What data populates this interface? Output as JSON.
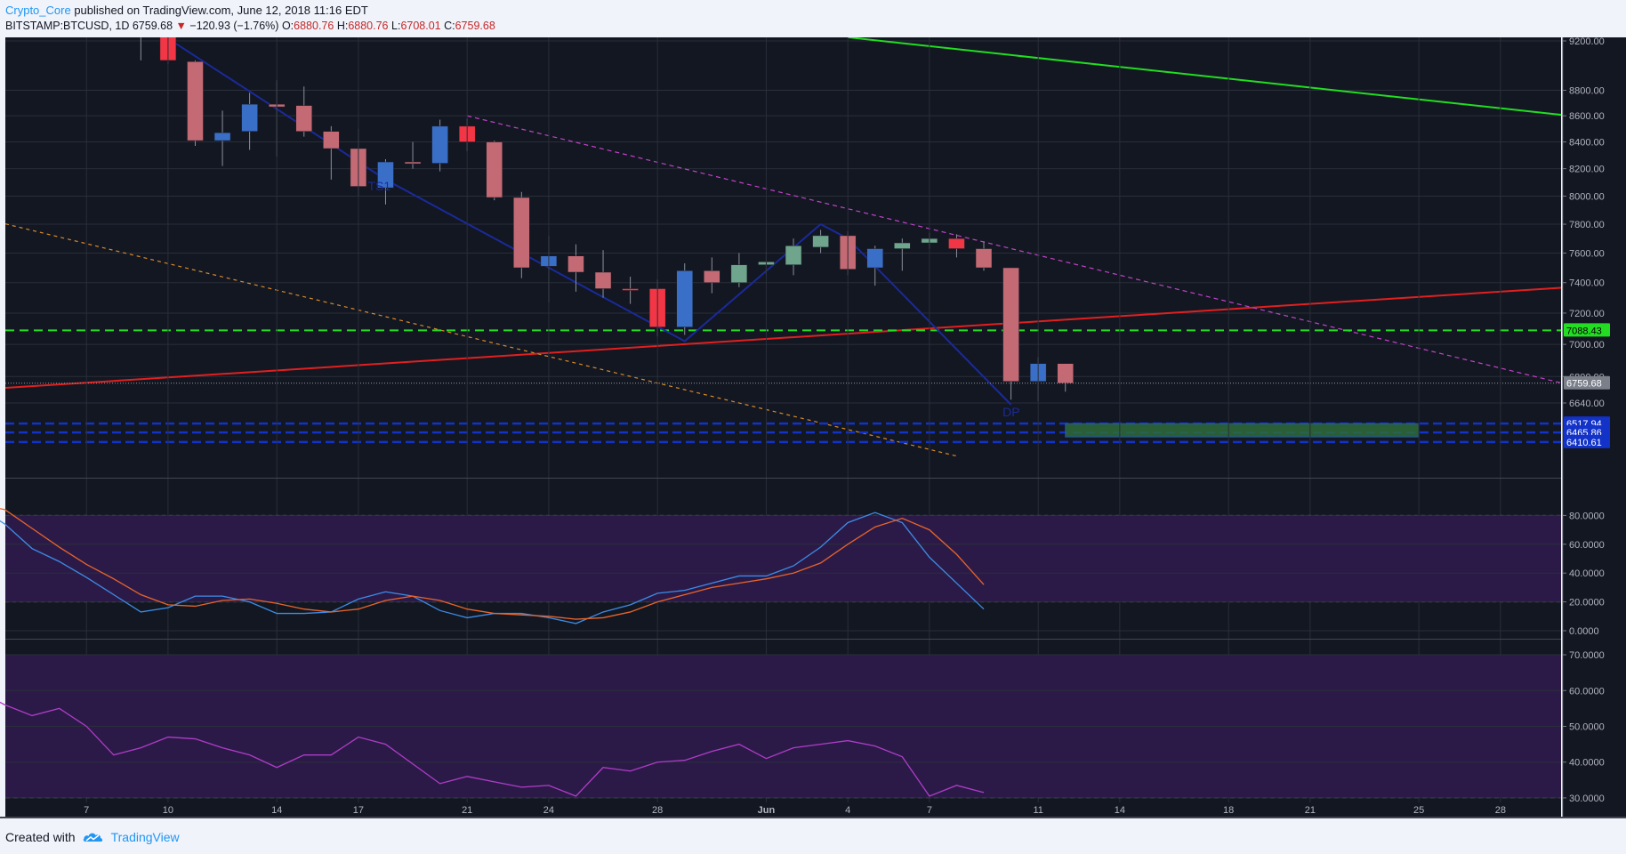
{
  "header": {
    "author": "Crypto_Core",
    "published": " published on TradingView.com, June 12, 2018 11:16 EDT"
  },
  "quote": {
    "symbol": "BITSTAMP:BTCUSD, 1D",
    "last": "6759.68",
    "arrow": "▼",
    "change": "−120.93 (−1.76%)",
    "o_label": "O:",
    "o": "6880.76",
    "h_label": "H:",
    "h": "6880.76",
    "l_label": "L:",
    "l": "6708.01",
    "c_label": "C:",
    "c": "6759.68"
  },
  "footer": {
    "created_with": "Created with",
    "brand": "TradingView"
  },
  "colors": {
    "background": "#131722",
    "up_candle": "#3a6fc8",
    "down_candle": "#f23645",
    "faded_up": "#6fa58c",
    "faded_down": "#c46a74",
    "green_line": "#22dd22",
    "red_line": "#e02020",
    "orange_dash": "#d88a2a",
    "magenta_dash": "#c243c8",
    "navy_line": "#1a2a9a",
    "blue_zone": "#1232c8",
    "stoch_k": "#3c8ce6",
    "stoch_d": "#e8642a",
    "rsi": "#b03cc8",
    "band_fill": "#2b1a48"
  },
  "chart_data": [
    {
      "type": "candlestick",
      "panel": "price",
      "x_tick_labels": [
        "7",
        "10",
        "14",
        "17",
        "21",
        "24",
        "28",
        "Jun",
        "4",
        "7",
        "11",
        "14",
        "18",
        "21",
        "25",
        "28"
      ],
      "y_tick_labels": [
        "9200.00",
        "8800.00",
        "8600.00",
        "8400.00",
        "8200.00",
        "8000.00",
        "7800.00",
        "7600.00",
        "7400.00",
        "7200.00",
        "7000.00",
        "6800.00",
        "6640.00"
      ],
      "price_tags": [
        {
          "label": "7088.43",
          "value": 7088.43,
          "color": "#22dd22",
          "text_color": "#000000"
        },
        {
          "label": "6759.68",
          "value": 6759.68,
          "color": "#7a7f8a",
          "text_color": "#ffffff"
        },
        {
          "label": "6517.94",
          "value": 6517.94,
          "color": "#1232c8",
          "text_color": "#ffffff"
        },
        {
          "label": "6465.86",
          "value": 6465.86,
          "color": "#1232c8",
          "text_color": "#ffffff"
        },
        {
          "label": "6410.61",
          "value": 6410.61,
          "color": "#1232c8",
          "text_color": "#ffffff"
        }
      ],
      "annotations": [
        {
          "text": "TS1",
          "date": "May 18",
          "price": 8040
        },
        {
          "text": "DP",
          "date": "Jun 11",
          "price": 6560
        }
      ],
      "candles": [
        {
          "date": "May 08",
          "open": 9350,
          "high": 9450,
          "low": 9230,
          "close": 9280
        },
        {
          "date": "May 09",
          "open": 9260,
          "high": 9420,
          "low": 9040,
          "close": 9300
        },
        {
          "date": "May 10",
          "open": 9300,
          "high": 9380,
          "low": 9010,
          "close": 9040
        },
        {
          "date": "May 11",
          "open": 9030,
          "high": 9040,
          "low": 8370,
          "close": 8410
        },
        {
          "date": "May 12",
          "open": 8410,
          "high": 8640,
          "low": 8220,
          "close": 8470
        },
        {
          "date": "May 13",
          "open": 8480,
          "high": 8780,
          "low": 8340,
          "close": 8690
        },
        {
          "date": "May 14",
          "open": 8690,
          "high": 8880,
          "low": 8290,
          "close": 8670
        },
        {
          "date": "May 15",
          "open": 8680,
          "high": 8830,
          "low": 8440,
          "close": 8480
        },
        {
          "date": "May 16",
          "open": 8480,
          "high": 8520,
          "low": 8120,
          "close": 8350
        },
        {
          "date": "May 17",
          "open": 8350,
          "high": 8500,
          "low": 8000,
          "close": 8070
        },
        {
          "date": "May 18",
          "open": 8060,
          "high": 8270,
          "low": 7940,
          "close": 8250
        },
        {
          "date": "May 19",
          "open": 8250,
          "high": 8400,
          "low": 8200,
          "close": 8240
        },
        {
          "date": "May 20",
          "open": 8240,
          "high": 8570,
          "low": 8180,
          "close": 8520
        },
        {
          "date": "May 21",
          "open": 8520,
          "high": 8580,
          "low": 8330,
          "close": 8400
        },
        {
          "date": "May 22",
          "open": 8400,
          "high": 8410,
          "low": 7970,
          "close": 7990
        },
        {
          "date": "May 23",
          "open": 7990,
          "high": 8030,
          "low": 7430,
          "close": 7500
        },
        {
          "date": "May 24",
          "open": 7510,
          "high": 7720,
          "low": 7270,
          "close": 7580
        },
        {
          "date": "May 25",
          "open": 7580,
          "high": 7660,
          "low": 7340,
          "close": 7470
        },
        {
          "date": "May 26",
          "open": 7470,
          "high": 7620,
          "low": 7300,
          "close": 7360
        },
        {
          "date": "May 27",
          "open": 7360,
          "high": 7440,
          "low": 7260,
          "close": 7350
        },
        {
          "date": "May 28",
          "open": 7360,
          "high": 7420,
          "low": 7050,
          "close": 7110
        },
        {
          "date": "May 29",
          "open": 7110,
          "high": 7530,
          "low": 7060,
          "close": 7480
        },
        {
          "date": "May 30",
          "open": 7480,
          "high": 7570,
          "low": 7330,
          "close": 7400
        },
        {
          "date": "May 31",
          "open": 7400,
          "high": 7600,
          "low": 7370,
          "close": 7520
        },
        {
          "date": "Jun 01",
          "open": 7520,
          "high": 7610,
          "low": 7450,
          "close": 7540
        },
        {
          "date": "Jun 02",
          "open": 7520,
          "high": 7700,
          "low": 7450,
          "close": 7650
        },
        {
          "date": "Jun 03",
          "open": 7640,
          "high": 7760,
          "low": 7600,
          "close": 7720
        },
        {
          "date": "Jun 04",
          "open": 7720,
          "high": 7750,
          "low": 7450,
          "close": 7490
        },
        {
          "date": "Jun 05",
          "open": 7500,
          "high": 7650,
          "low": 7380,
          "close": 7630
        },
        {
          "date": "Jun 06",
          "open": 7630,
          "high": 7700,
          "low": 7480,
          "close": 7670
        },
        {
          "date": "Jun 07",
          "open": 7670,
          "high": 7740,
          "low": 7630,
          "close": 7700
        },
        {
          "date": "Jun 08",
          "open": 7700,
          "high": 7730,
          "low": 7570,
          "close": 7630
        },
        {
          "date": "Jun 09",
          "open": 7630,
          "high": 7680,
          "low": 7480,
          "close": 7500
        },
        {
          "date": "Jun 10",
          "open": 7500,
          "high": 7500,
          "low": 6660,
          "close": 6770
        },
        {
          "date": "Jun 11",
          "open": 6770,
          "high": 6920,
          "low": 6650,
          "close": 6880
        },
        {
          "date": "Jun 12",
          "open": 6880,
          "high": 6880,
          "low": 6708,
          "close": 6759.68
        }
      ]
    },
    {
      "type": "line",
      "panel": "stochastic",
      "y_tick_labels": [
        "80.0000",
        "60.0000",
        "40.0000",
        "20.0000",
        "0.0000"
      ],
      "band": [
        20,
        80
      ],
      "series": [
        {
          "values": [
            85,
            91,
            86,
            74,
            57,
            48,
            37,
            25,
            13,
            16,
            24,
            24,
            20,
            12,
            12,
            13,
            22,
            27,
            24,
            14,
            9,
            12,
            12,
            9,
            5,
            13,
            18,
            26,
            28,
            33,
            38,
            38,
            45,
            58,
            75,
            82,
            75,
            51,
            33,
            15
          ],
          "color": "#3c8ce6"
        },
        {
          "values": [
            76,
            85,
            88,
            84,
            71,
            58,
            46,
            36,
            25,
            18,
            17,
            21,
            22,
            19,
            15,
            13,
            15,
            21,
            24,
            21,
            15,
            12,
            11,
            10,
            8,
            9,
            13,
            20,
            25,
            30,
            33,
            36,
            40,
            47,
            60,
            72,
            78,
            70,
            53,
            32
          ],
          "color": "#e8642a"
        }
      ]
    },
    {
      "type": "line",
      "panel": "rsi",
      "y_tick_labels": [
        "70.0000",
        "60.0000",
        "50.0000",
        "40.0000",
        "30.0000"
      ],
      "band": [
        30,
        70
      ],
      "series": [
        {
          "values": [
            62,
            63.5,
            60,
            56,
            53,
            55,
            50,
            42,
            44,
            47,
            46.5,
            44,
            42,
            38.5,
            42,
            42,
            47,
            45,
            39.5,
            34,
            36,
            34.5,
            33,
            33.5,
            30.5,
            38.5,
            37.5,
            40,
            40.5,
            43,
            45,
            41,
            44,
            45,
            46,
            44.5,
            41.5,
            30.5,
            33.5,
            31.5
          ],
          "color": "#b03cc8"
        }
      ]
    }
  ]
}
